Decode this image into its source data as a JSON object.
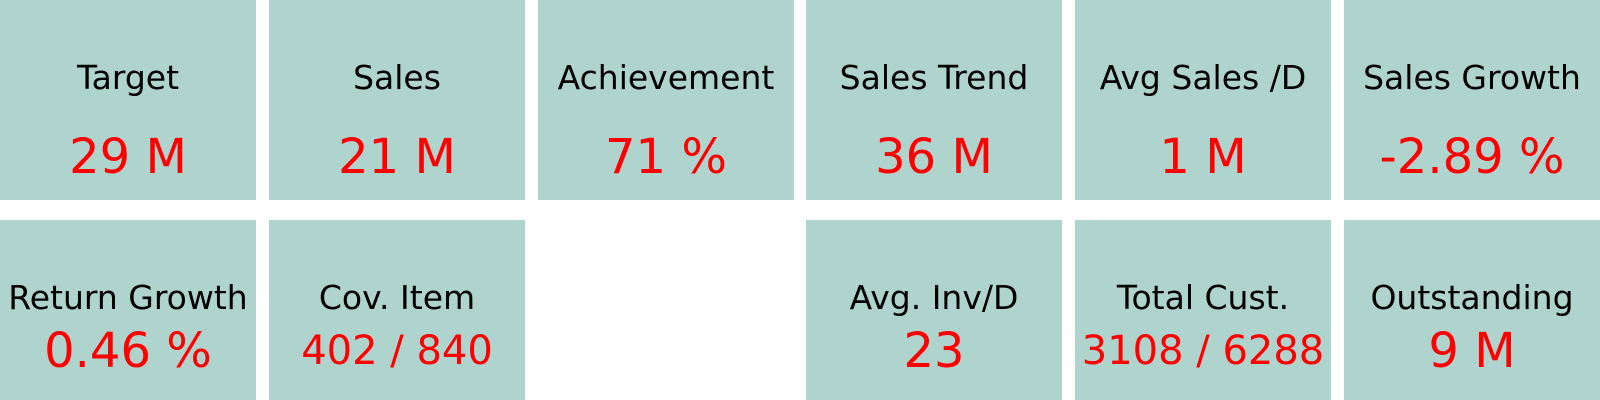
{
  "colors": {
    "tile_background": "#afd3cd",
    "label_text": "#000000",
    "value_text": "#ff0000",
    "page_background": "#ffffff"
  },
  "kpis_row1": [
    {
      "label": "Target",
      "value": "29 M"
    },
    {
      "label": "Sales",
      "value": "21 M"
    },
    {
      "label": "Achievement",
      "value": "71 %"
    },
    {
      "label": "Sales Trend",
      "value": "36 M"
    },
    {
      "label": "Avg Sales /D",
      "value": "1 M"
    },
    {
      "label": "Sales Growth",
      "value": "-2.89 %"
    }
  ],
  "kpis_row2": [
    {
      "label": "Return Growth",
      "value": "0.46 %"
    },
    {
      "label": "Cov. Item",
      "value": "402 / 840"
    },
    {
      "label": "Avg. Inv/D",
      "value": "23"
    },
    {
      "label": "Total Cust.",
      "value": "3108 / 6288"
    },
    {
      "label": "Outstanding",
      "value": "9 M"
    }
  ]
}
